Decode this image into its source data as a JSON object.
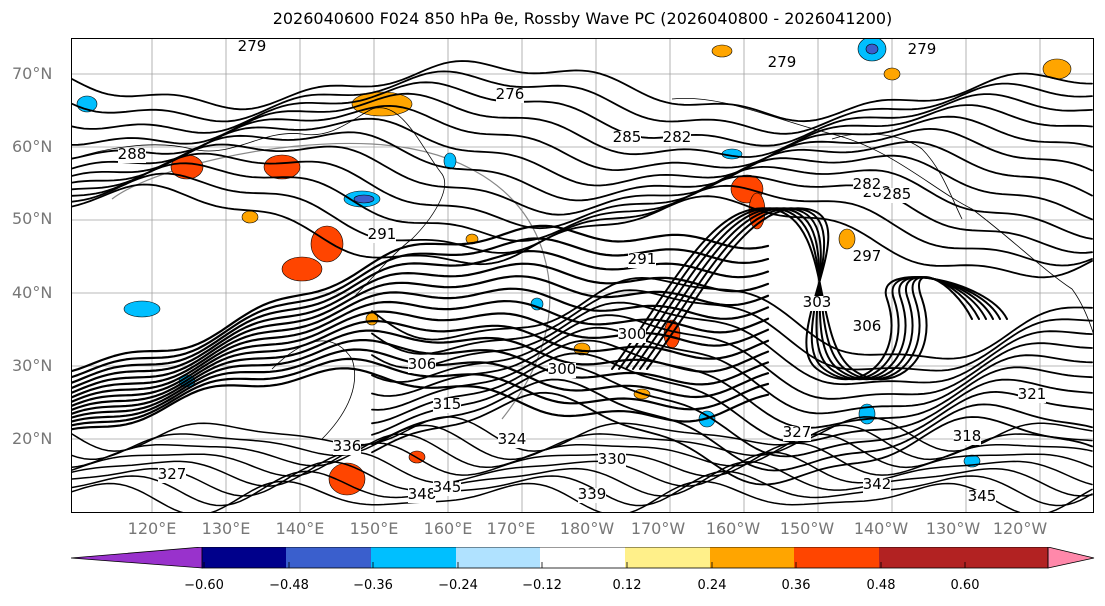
{
  "title": "2026040600 F024 850 hPa θe, Rossby Wave PC (2026040800 - 2026041200)",
  "map": {
    "lat_labels": [
      "70°N",
      "60°N",
      "50°N",
      "40°N",
      "30°N",
      "20°N"
    ],
    "lon_labels": [
      "120°E",
      "130°E",
      "140°E",
      "150°E",
      "160°E",
      "170°E",
      "180°W",
      "170°W",
      "160°W",
      "150°W",
      "140°W",
      "130°W",
      "120°W"
    ],
    "contour_labels": [
      "279",
      "276",
      "279",
      "279",
      "288",
      "285",
      "282",
      "282",
      "285",
      "282",
      "291",
      "291",
      "297",
      "303",
      "306",
      "300",
      "300",
      "306",
      "315",
      "324",
      "321",
      "318",
      "327",
      "330",
      "339",
      "348",
      "345",
      "345",
      "336",
      "327",
      "342"
    ],
    "grid": true,
    "colors": {
      "contour": "#000000",
      "coast": "#000000",
      "grid": "#a0a0a0",
      "label": "#777777"
    }
  },
  "colorbar": {
    "tick_labels": [
      "−0.60",
      "−0.48",
      "−0.36",
      "−0.24",
      "−0.12",
      "0.12",
      "0.24",
      "0.36",
      "0.48",
      "0.60"
    ],
    "colors": [
      "#9932cc",
      "#00008b",
      "#3a5fcd",
      "#00bfff",
      "#b0e2ff",
      "#ffffff",
      "#fff08a",
      "#ffa500",
      "#ff4500",
      "#b22222",
      "#ff88aa"
    ]
  }
}
